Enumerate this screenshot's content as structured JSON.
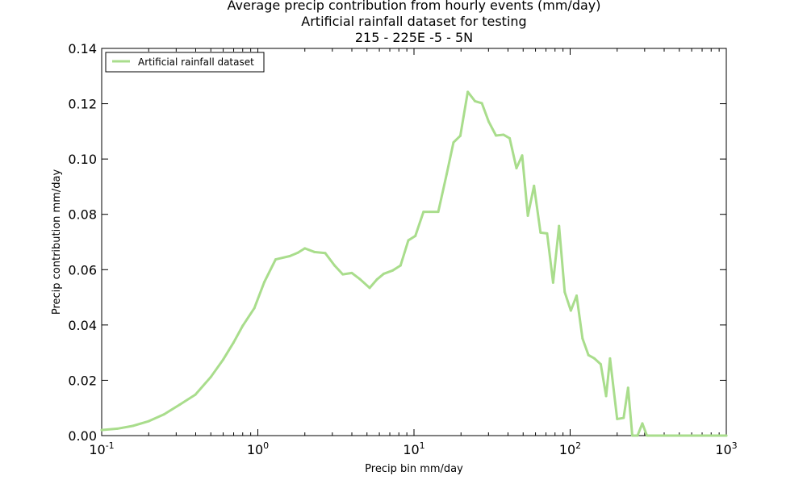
{
  "chart_data": {
    "type": "line",
    "title_lines": [
      "Average precip contribution from hourly events (mm/day)",
      "Artificial rainfall dataset for testing",
      "215 - 225E  -5 - 5N"
    ],
    "xlabel": "Precip bin mm/day",
    "ylabel": "Precip contribution mm/day",
    "xscale": "log",
    "xlim": [
      0.1,
      1000
    ],
    "ylim": [
      0.0,
      0.14
    ],
    "grid": false,
    "legend_position": "top-left",
    "x_tick_labels": [
      {
        "base": "10",
        "exp": "-1"
      },
      {
        "base": "10",
        "exp": "0"
      },
      {
        "base": "10",
        "exp": "1"
      },
      {
        "base": "10",
        "exp": "2"
      },
      {
        "base": "10",
        "exp": "3"
      }
    ],
    "y_tick_labels": [
      "0.00",
      "0.02",
      "0.04",
      "0.06",
      "0.08",
      "0.10",
      "0.12",
      "0.14"
    ],
    "series": [
      {
        "name": "Artificial rainfall dataset",
        "color": "#a9dd8c",
        "x": [
          0.1,
          0.126,
          0.158,
          0.2,
          0.251,
          0.316,
          0.398,
          0.5,
          0.6,
          0.7,
          0.8,
          0.95,
          1.1,
          1.3,
          1.6,
          1.8,
          2.0,
          2.3,
          2.7,
          3.1,
          3.5,
          4.0,
          4.5,
          5.2,
          5.8,
          6.4,
          7.3,
          8.2,
          9.2,
          10.2,
          11.5,
          12.6,
          14.3,
          16.2,
          17.9,
          19.8,
          22.1,
          24.6,
          27.2,
          30.1,
          33.5,
          37.4,
          41.0,
          45.3,
          49.3,
          53.6,
          58.7,
          64.6,
          71.2,
          77.8,
          84.9,
          92.3,
          101.0,
          110.0,
          120.0,
          131.0,
          143.0,
          157.0,
          170.0,
          180.0,
          200.0,
          220.0,
          235.0,
          250.0,
          270.0,
          290.0,
          310.0,
          340.0,
          400.0,
          500.0,
          600.0,
          700.0,
          800.0,
          900.0,
          1000.0
        ],
        "y": [
          0.002,
          0.0025,
          0.0035,
          0.0052,
          0.0077,
          0.0112,
          0.0148,
          0.0212,
          0.0275,
          0.0337,
          0.0397,
          0.0461,
          0.0555,
          0.0637,
          0.0649,
          0.0661,
          0.0677,
          0.0664,
          0.066,
          0.0615,
          0.0583,
          0.0588,
          0.0566,
          0.0534,
          0.0565,
          0.0585,
          0.0597,
          0.0615,
          0.0706,
          0.0722,
          0.0809,
          0.0809,
          0.0809,
          0.0946,
          0.106,
          0.1084,
          0.1243,
          0.1209,
          0.1202,
          0.1135,
          0.1085,
          0.1088,
          0.1075,
          0.0967,
          0.1013,
          0.0795,
          0.0903,
          0.0734,
          0.0731,
          0.0553,
          0.0758,
          0.0519,
          0.0452,
          0.0506,
          0.0351,
          0.0291,
          0.0279,
          0.0258,
          0.0143,
          0.0279,
          0.006,
          0.0064,
          0.0173,
          0.0,
          0.0,
          0.0044,
          0.0,
          0.0,
          0.0,
          0.0,
          0.0,
          0.0,
          0.0,
          0.0,
          0.0
        ]
      }
    ]
  }
}
